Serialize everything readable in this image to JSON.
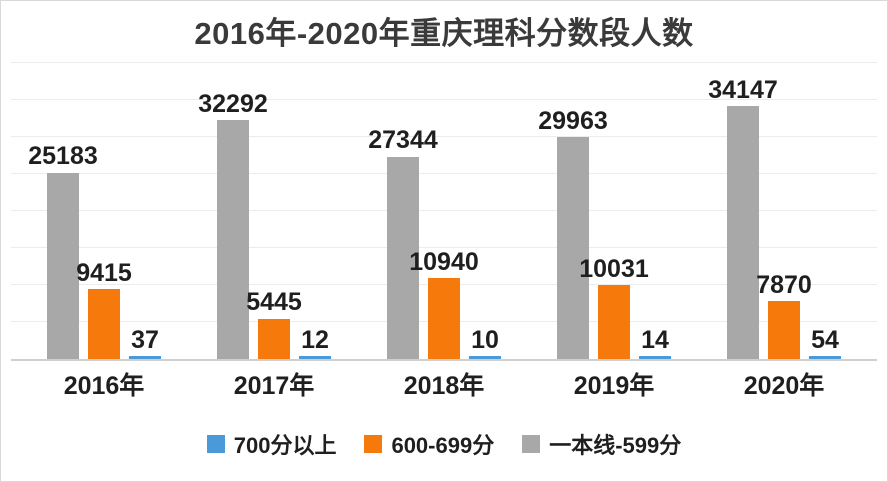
{
  "chart_data": {
    "type": "bar",
    "title": "2016年-2020年重庆理科分数段人数",
    "categories": [
      "2016年",
      "2017年",
      "2018年",
      "2019年",
      "2020年"
    ],
    "series": [
      {
        "key": "700plus",
        "name": "700分以上",
        "color": "#4A9AD9",
        "values": [
          37,
          12,
          10,
          14,
          54
        ]
      },
      {
        "key": "600to699",
        "name": "600-699分",
        "color": "#F5790B",
        "values": [
          9415,
          5445,
          10940,
          10031,
          7870
        ]
      },
      {
        "key": "tier1to599",
        "name": "一本线-599分",
        "color": "#A8A8A8",
        "values": [
          25183,
          32292,
          27344,
          29963,
          34147
        ]
      }
    ],
    "bar_order": [
      "tier1to599",
      "600to699",
      "700plus"
    ],
    "xlabel": "",
    "ylabel": "",
    "ylim": [
      0,
      40000
    ],
    "grid": true,
    "grid_step": 5000,
    "legend_position": "bottom"
  }
}
